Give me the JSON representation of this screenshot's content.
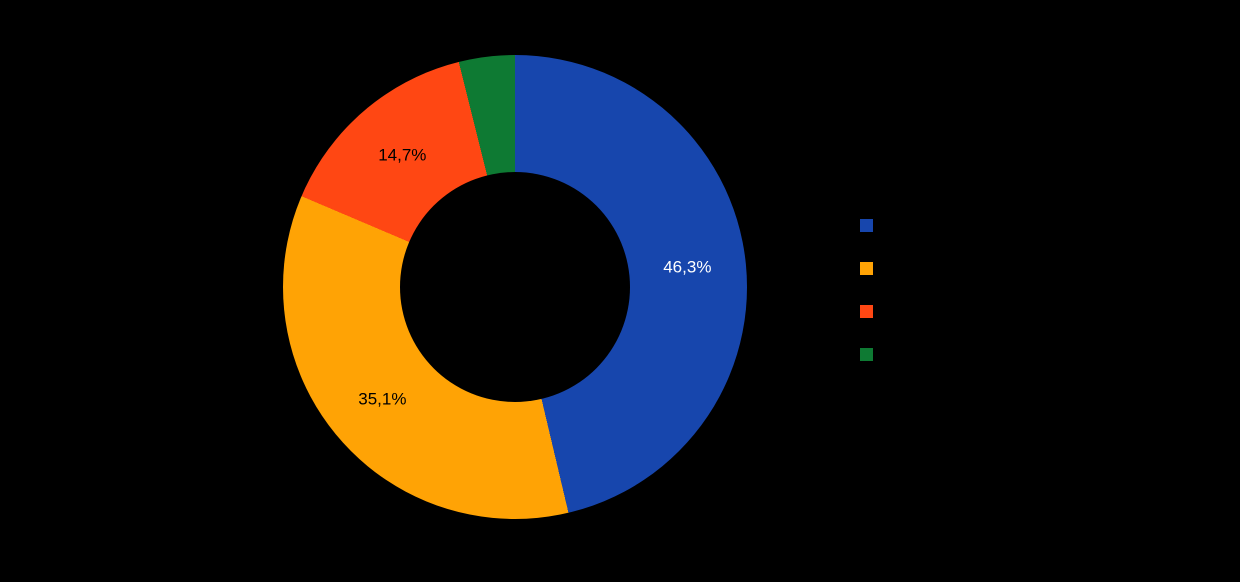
{
  "page": {
    "background_color": "#000000"
  },
  "chart_data": {
    "type": "pie",
    "subtype": "donut",
    "title": "",
    "legend_position": "right",
    "start_angle_deg": 0,
    "direction": "clockwise",
    "value_format": "percent-decimal-comma",
    "slices": [
      {
        "value": 46.3,
        "label": "46,3%",
        "color": "#1746AD",
        "label_color": "#FFFFFF"
      },
      {
        "value": 35.1,
        "label": "35,1%",
        "color": "#FFA305",
        "label_color": "#000000"
      },
      {
        "value": 14.7,
        "label": "14,7%",
        "color": "#FF4713",
        "label_color": "#000000"
      },
      {
        "value": 3.9,
        "label": "",
        "color": "#0E7A33",
        "label_color": "#000000"
      }
    ],
    "legend": [
      {
        "label": "",
        "color": "#1746AD"
      },
      {
        "label": "",
        "color": "#FFA305"
      },
      {
        "label": "",
        "color": "#FF4713"
      },
      {
        "label": "",
        "color": "#0E7A33"
      }
    ]
  }
}
